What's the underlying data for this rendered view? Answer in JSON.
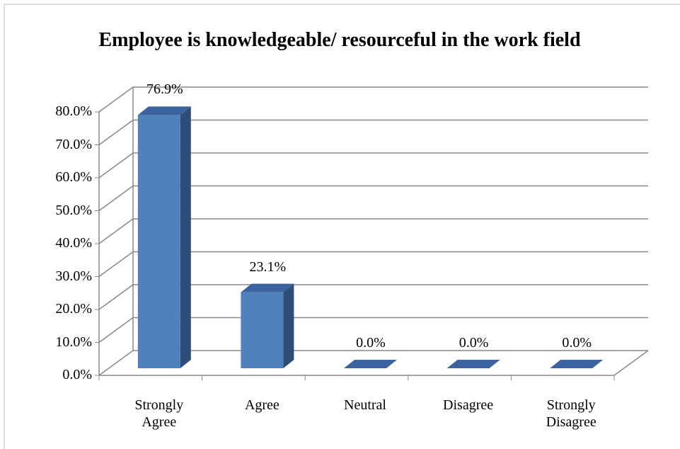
{
  "chart_data": {
    "type": "bar3d",
    "title": "Employee is knowledgeable/ resourceful in the work field",
    "categories": [
      "Strongly Agree",
      "Agree",
      "Neutral",
      "Disagree",
      "Strongly Disagree"
    ],
    "values": [
      76.9,
      23.1,
      0,
      0,
      0
    ],
    "value_labels": [
      "76.9%",
      "23.1%",
      "0.0%",
      "0.0%",
      "0.0%"
    ],
    "color": "#4f81bd",
    "ylim": [
      0,
      80
    ],
    "yticks": [
      {
        "value": 0,
        "label": "0.0%"
      },
      {
        "value": 10,
        "label": "10.0%"
      },
      {
        "value": 20,
        "label": "20.0%"
      },
      {
        "value": 30,
        "label": "30.0%"
      },
      {
        "value": 40,
        "label": "40.0%"
      },
      {
        "value": 50,
        "label": "50.0%"
      },
      {
        "value": 60,
        "label": "60.0%"
      },
      {
        "value": 70,
        "label": "70.0%"
      },
      {
        "value": 80,
        "label": "80.0%"
      }
    ],
    "grid": true
  }
}
